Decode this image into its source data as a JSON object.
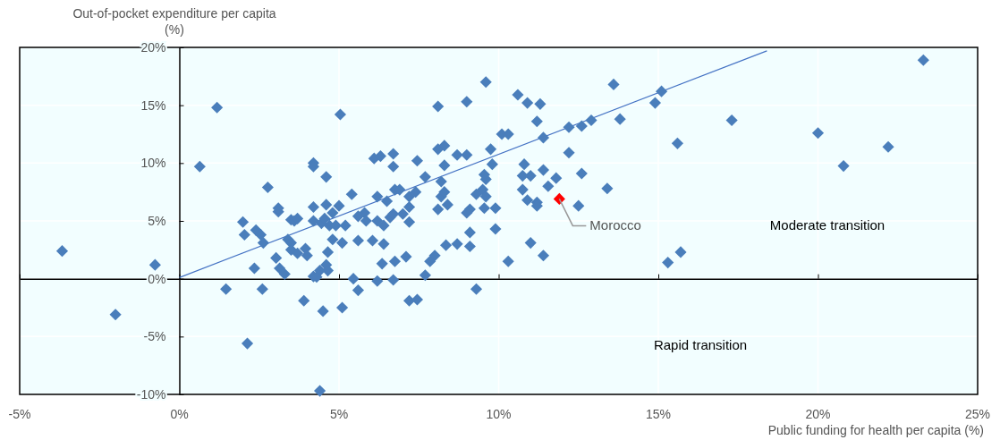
{
  "chart_data": {
    "type": "scatter",
    "xlabel": "Public funding for health per capita (%)",
    "ylabel": "Out-of-pocket expenditure per capita (%)",
    "xlim": [
      -5,
      25
    ],
    "xticks": [
      {
        "value": -5,
        "label": "-5%"
      },
      {
        "value": 0,
        "label": "0%"
      },
      {
        "value": 5,
        "label": "5%"
      },
      {
        "value": 10,
        "label": "10%"
      },
      {
        "value": 15,
        "label": "15%"
      },
      {
        "value": 20,
        "label": "20%"
      },
      {
        "value": 25,
        "label": "25%"
      }
    ],
    "ylim": [
      -10,
      20
    ],
    "yticks": [
      {
        "value": -10,
        "label": "-10%"
      },
      {
        "value": -5,
        "label": "-5%"
      },
      {
        "value": 0,
        "label": "0%"
      },
      {
        "value": 5,
        "label": "5%"
      },
      {
        "value": 10,
        "label": "10%"
      },
      {
        "value": 15,
        "label": "15%"
      },
      {
        "value": 20,
        "label": "20%"
      }
    ],
    "grid": true,
    "annotations": [
      "Moderate transition",
      "Rapid transition"
    ],
    "series": [
      {
        "marker": "diamond",
        "color": "#4a7ebb",
        "x": [
          -3.67,
          -0.76,
          -2.0,
          0.64,
          1.18,
          1.46,
          2.13,
          2.77,
          1.99,
          2.04,
          2.4,
          2.55,
          2.63,
          2.35,
          2.6,
          3.03,
          3.14,
          3.3,
          3.1,
          3.1,
          3.5,
          3.6,
          3.7,
          3.4,
          3.5,
          3.5,
          3.7,
          3.95,
          4.0,
          3.9,
          4.2,
          4.2,
          4.6,
          4.2,
          4.6,
          4.8,
          4.2,
          4.45,
          4.7,
          4.2,
          4.4,
          4.6,
          4.5,
          4.4,
          5.04,
          5.4,
          5.0,
          4.55,
          4.9,
          5.2,
          5.6,
          5.8,
          5.85,
          6.2,
          6.4,
          6.6,
          6.7,
          6.2,
          6.5,
          6.75,
          6.9,
          7.2,
          7.2,
          7.4,
          7.0,
          7.2,
          6.1,
          6.3,
          6.7,
          6.7,
          7.45,
          7.7,
          8.2,
          8.1,
          8.3,
          8.1,
          8.3,
          8.2,
          8.3,
          8.1,
          8.4,
          8.7,
          9.0,
          9.0,
          9.6,
          10.1,
          10.3,
          9.75,
          9.8,
          9.55,
          9.6,
          9.3,
          9.5,
          9.6,
          9.0,
          9.1,
          9.55,
          9.9,
          9.1,
          9.1,
          9.9,
          8.7,
          8.35,
          8.0,
          7.85,
          10.3,
          6.35,
          6.75,
          7.1,
          6.4,
          6.05,
          5.6,
          4.8,
          5.1,
          4.65,
          4.65,
          4.3,
          5.45,
          6.2,
          6.7,
          7.7,
          5.6,
          5.1,
          7.2,
          7.45,
          9.3,
          10.6,
          10.9,
          11.3,
          13.6,
          15.1,
          14.9,
          11.2,
          11.4,
          12.2,
          12.6,
          12.9,
          13.8,
          15.6,
          12.2,
          10.8,
          11.4,
          10.75,
          11.0,
          11.8,
          12.6,
          11.55,
          10.75,
          13.4,
          10.9,
          11.2,
          11.2,
          12.5,
          11.0,
          11.4,
          15.3,
          15.7,
          17.3,
          20.0,
          20.8,
          22.2,
          23.3
        ],
        "values": [
          2.4,
          1.2,
          -3.1,
          9.7,
          14.8,
          -0.9,
          -5.6,
          7.9,
          4.9,
          3.8,
          4.2,
          3.8,
          3.1,
          0.9,
          -0.9,
          1.8,
          0.9,
          0.4,
          5.8,
          6.1,
          5.1,
          5.0,
          5.2,
          3.4,
          3.1,
          2.5,
          2.2,
          2.6,
          2.0,
          -1.9,
          10.0,
          9.7,
          8.8,
          6.2,
          6.4,
          5.7,
          5.0,
          4.8,
          4.6,
          0.2,
          0.7,
          1.2,
          -2.8,
          -9.7,
          14.2,
          7.3,
          6.3,
          5.2,
          4.6,
          4.6,
          5.4,
          5.7,
          5.0,
          5.0,
          4.6,
          5.3,
          5.6,
          7.1,
          6.7,
          7.7,
          7.7,
          7.1,
          6.2,
          7.5,
          5.6,
          4.9,
          10.4,
          10.6,
          10.8,
          9.7,
          10.2,
          8.8,
          8.4,
          11.2,
          11.5,
          14.9,
          9.8,
          7.1,
          7.5,
          6.0,
          6.4,
          10.7,
          10.7,
          15.3,
          17.0,
          12.5,
          12.5,
          11.2,
          9.9,
          9.0,
          8.6,
          7.3,
          7.7,
          7.1,
          5.7,
          6.0,
          6.1,
          6.1,
          4.0,
          2.8,
          4.3,
          3.0,
          2.9,
          2.0,
          1.5,
          1.5,
          1.3,
          1.5,
          1.9,
          3.0,
          3.3,
          3.3,
          3.4,
          3.1,
          2.3,
          0.7,
          0.15,
          0.0,
          -0.2,
          -0.1,
          0.3,
          -1.0,
          -2.5,
          -1.9,
          -1.8,
          -0.9,
          15.9,
          15.2,
          15.1,
          16.8,
          16.2,
          15.2,
          13.6,
          12.2,
          13.1,
          13.2,
          13.7,
          13.8,
          11.7,
          10.9,
          9.9,
          9.4,
          8.9,
          8.9,
          8.7,
          9.1,
          8.0,
          7.7,
          7.8,
          6.8,
          6.6,
          6.3,
          6.3,
          3.1,
          2.0,
          1.4,
          2.3,
          13.7,
          12.6,
          9.75,
          11.4,
          18.9
        ]
      },
      {
        "marker": "diamond",
        "name": "Morocco",
        "color": "#ff0000",
        "x": [
          11.9
        ],
        "values": [
          6.9
        ]
      },
      {
        "type": "line",
        "color": "#4472c4",
        "x": [
          0,
          18.4
        ],
        "values": [
          0.1,
          19.7
        ]
      }
    ]
  }
}
